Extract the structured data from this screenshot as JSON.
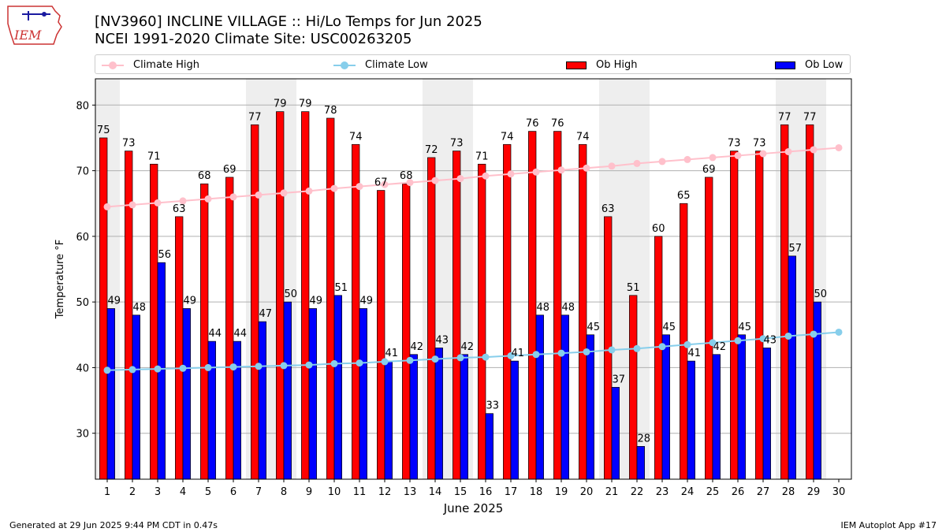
{
  "header": {
    "title": "[NV3960] INCLINE VILLAGE :: Hi/Lo Temps for Jun 2025",
    "subtitle": "NCEI 1991-2020 Climate Site: USC00263205",
    "logo_text": "IEM"
  },
  "legend": {
    "climate_high": "Climate High",
    "climate_low": "Climate Low",
    "ob_high": "Ob High",
    "ob_low": "Ob Low"
  },
  "footer": {
    "left": "Generated at 29 Jun 2025 9:44 PM CDT in 0.47s",
    "right": "IEM Autoplot App #17"
  },
  "colors": {
    "ob_high": "#ff0000",
    "ob_low": "#0000ff",
    "climate_high": "#ffc0cb",
    "climate_low": "#87ceeb",
    "weekend_band": "#eeeeee",
    "grid": "#b0b0b0"
  },
  "chart_data": {
    "type": "bar",
    "title": "[NV3960] INCLINE VILLAGE :: Hi/Lo Temps for Jun 2025",
    "xlabel": "June 2025",
    "ylabel": "Temperature °F",
    "categories": [
      "1",
      "2",
      "3",
      "4",
      "5",
      "6",
      "7",
      "8",
      "9",
      "10",
      "11",
      "12",
      "13",
      "14",
      "15",
      "16",
      "17",
      "18",
      "19",
      "20",
      "21",
      "22",
      "23",
      "24",
      "25",
      "26",
      "27",
      "28",
      "29",
      "30"
    ],
    "ylim": [
      23,
      84
    ],
    "yticks": [
      30,
      40,
      50,
      60,
      70,
      80
    ],
    "grid": "horizontal",
    "legend_position": "top",
    "shaded_weekend_days": [
      1,
      7,
      8,
      14,
      15,
      21,
      22,
      28,
      29
    ],
    "series": [
      {
        "name": "Ob High",
        "type": "bar",
        "values": [
          75,
          73,
          71,
          63,
          68,
          69,
          77,
          79,
          79,
          78,
          74,
          67,
          68,
          72,
          73,
          71,
          74,
          76,
          76,
          74,
          63,
          51,
          60,
          65,
          69,
          73,
          73,
          77,
          77,
          null
        ]
      },
      {
        "name": "Ob Low",
        "type": "bar",
        "values": [
          49,
          48,
          56,
          49,
          44,
          44,
          47,
          50,
          49,
          51,
          49,
          41,
          42,
          43,
          42,
          33,
          41,
          48,
          48,
          45,
          37,
          28,
          45,
          41,
          42,
          45,
          43,
          57,
          50,
          null
        ]
      },
      {
        "name": "Climate High",
        "type": "line",
        "values": [
          64.5,
          64.8,
          65.1,
          65.4,
          65.7,
          66.0,
          66.3,
          66.6,
          66.9,
          67.3,
          67.6,
          67.9,
          68.2,
          68.5,
          68.8,
          69.2,
          69.5,
          69.8,
          70.1,
          70.4,
          70.7,
          71.1,
          71.4,
          71.7,
          72.0,
          72.3,
          72.6,
          72.9,
          73.2,
          73.5
        ]
      },
      {
        "name": "Climate Low",
        "type": "line",
        "values": [
          39.6,
          39.7,
          39.8,
          39.9,
          40.0,
          40.1,
          40.2,
          40.3,
          40.4,
          40.6,
          40.7,
          40.9,
          41.1,
          41.3,
          41.5,
          41.6,
          41.8,
          42.0,
          42.2,
          42.4,
          42.7,
          42.9,
          43.2,
          43.5,
          43.8,
          44.1,
          44.4,
          44.8,
          45.1,
          45.4
        ]
      }
    ]
  }
}
